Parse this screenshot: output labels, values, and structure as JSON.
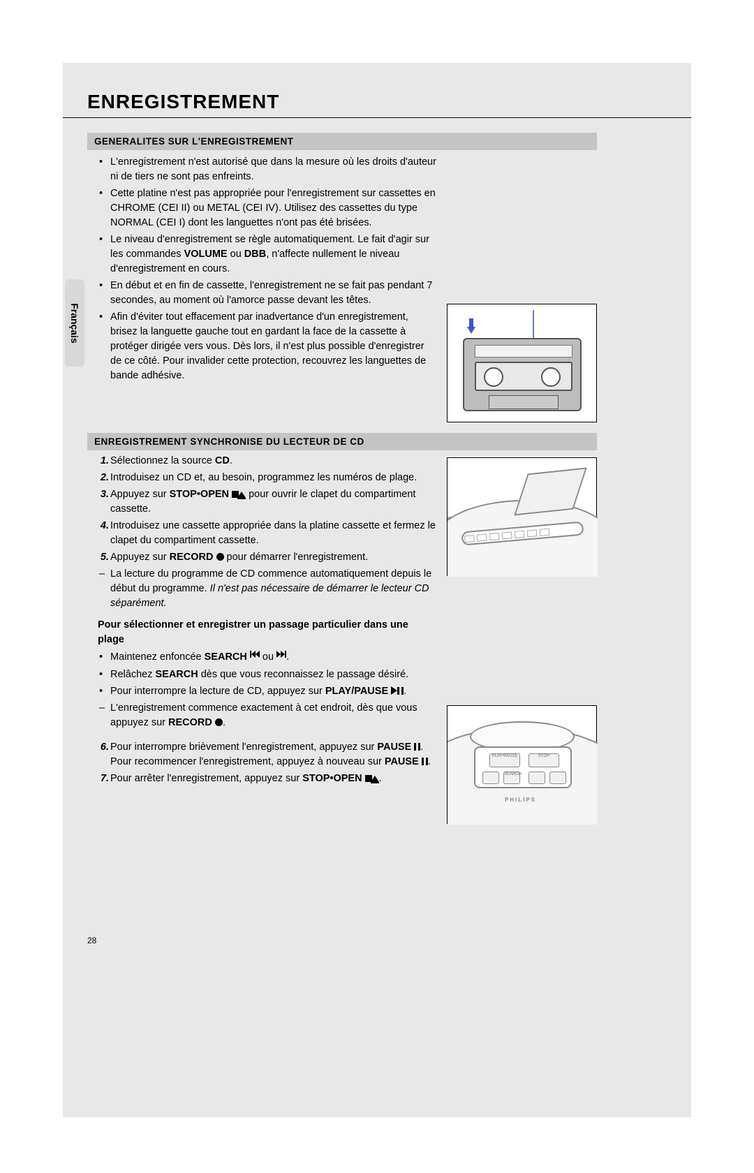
{
  "page": {
    "title": "ENREGISTREMENT",
    "language_tab": "Français",
    "number": "28",
    "background_color": "#e8e8e8",
    "header_bar_color": "#c4c4c4",
    "body_font_size_pt": 11,
    "title_font_size_pt": 21,
    "line_height": 1.45,
    "text_color": "#000000"
  },
  "section1": {
    "heading": "GENERALITES SUR L'ENREGISTREMENT",
    "bullets": [
      "L'enregistrement n'est autorisé que dans la mesure où les droits d'auteur ni de tiers ne sont pas enfreints.",
      "Cette platine n'est pas appropriée pour l'enregistrement sur cassettes en CHROME (CEI II) ou METAL (CEI IV). Utilisez des cassettes du type NORMAL (CEI I) dont les languettes n'ont pas été brisées.",
      "Le niveau d'enregistrement se règle automatiquement. Le fait d'agir sur les commandes <strong>VOLUME</strong> ou <strong>DBB</strong>, n'affecte nullement le niveau d'enregistrement en cours.",
      "En début et en fin de cassette, l'enregistrement ne se fait pas pendant 7 secondes, au moment où l'amorce passe devant les têtes.",
      "Afin d'éviter tout effacement par inadvertance d'un enregistrement, brisez la languette gauche tout en gardant la face de la cassette à protéger dirigée vers vous. Dès lors, il n'est plus possible d'enregistrer de ce côté. Pour invalider cette protection, recouvrez les languettes de bande adhésive."
    ]
  },
  "section2": {
    "heading": "ENREGISTREMENT SYNCHRONISE DU LECTEUR DE CD",
    "steps_a": [
      "Sélectionnez la source <strong>CD</strong>.",
      "Introduisez un CD et, au besoin, programmez les numéros de plage.",
      "Appuyez sur <strong>STOP•OPEN</strong> <span class='sym-stop'></span><span class='sym-eject'></span> pour ouvrir le clapet du compartiment cassette.",
      "Introduisez une cassette appropriée dans la platine cassette et fermez le clapet du compartiment cassette.",
      "Appuyez sur <strong>RECORD</strong> <span class='sym-rec'></span> pour démarrer l'enregistrement."
    ],
    "dash_a": "La lecture du programme de CD commence automatiquement depuis le début du programme. <em>Il n'est pas nécessaire de démarrer le lecteur CD séparément.</em>",
    "subhead": "Pour sélectionner et enregistrer un passage particulier dans une plage",
    "bullets_b": [
      "Maintenez enfoncée <strong>SEARCH</strong> <span class='sym-rew'><span class='bar'></span><span class='tri'></span><span class='tri'></span></span> ou <span class='sym-ff'><span class='tri'></span><span class='tri'></span><span class='bar'></span></span>.",
      "Relâchez <strong>SEARCH</strong> dès que vous reconnaissez le passage désiré.",
      "Pour interrompre la lecture de CD, appuyez sur <strong>PLAY/PAUSE</strong> <span class='sym-play'></span><span class='sym-pause'></span>."
    ],
    "dash_b": "L'enregistrement commence exactement à cet endroit, dès que vous appuyez sur <strong>RECORD</strong> <span class='sym-rec'></span>.",
    "steps_c": [
      "Pour interrompre brièvement l'enregistrement, appuyez sur <strong>PAUSE</strong> <span class='sym-pause'></span>. Pour recommencer l'enregistrement, appuyez à nouveau sur <strong>PAUSE</strong> <span class='sym-pause'></span>.",
      "Pour arrêter l'enregistrement, appuyez sur <strong>STOP•OPEN</strong> <span class='sym-stop'></span><span class='sym-eject'></span>."
    ],
    "step_start_c": 6
  },
  "figures": {
    "fig1": {
      "type": "illustration",
      "subject": "cassette-with-tab-arrow",
      "arrow_color": "#3a57c6",
      "antenna_color": "#6a7fbf"
    },
    "fig2": {
      "type": "illustration",
      "subject": "boombox-top-cd-lid"
    },
    "fig3": {
      "type": "illustration",
      "subject": "cd-player-front-controls",
      "brand": "PHILIPS",
      "btn_labels": [
        "PLAY•PAUSE",
        "STOP",
        "",
        "SEARCH",
        "",
        ""
      ]
    }
  }
}
